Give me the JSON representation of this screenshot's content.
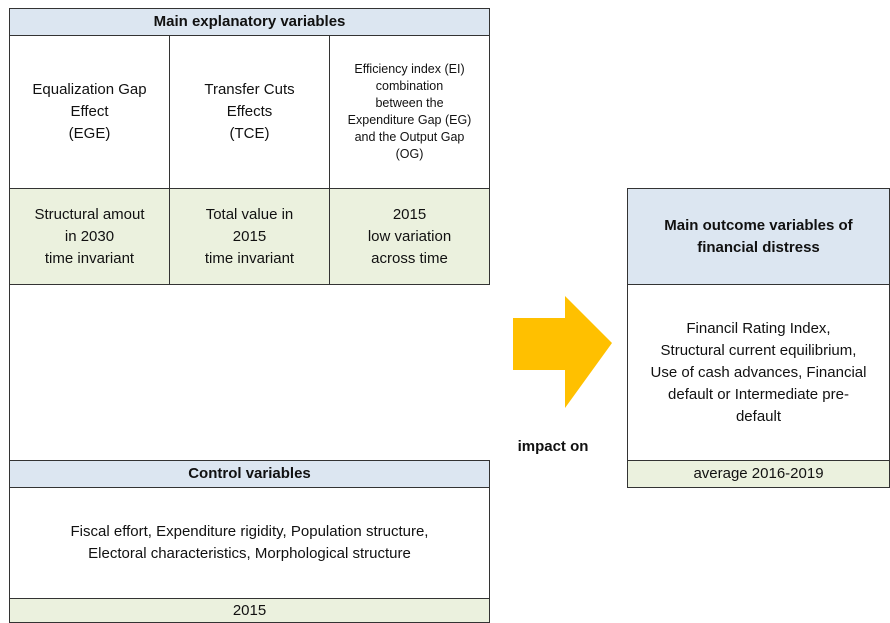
{
  "main_block": {
    "title": "Main explanatory variables",
    "variables": [
      {
        "label": "Equalization Gap\nEffect\n(EGE)",
        "description": "Structural amout\nin 2030\ntime invariant"
      },
      {
        "label": "Transfer Cuts\nEffects\n(TCE)",
        "description": "Total value in\n2015\ntime invariant"
      },
      {
        "label": "Efficiency index (EI)\ncombination\nbetween the\nExpenditure Gap (EG)\nand the Output Gap\n(OG)",
        "description": "2015\nlow variation\nacross time"
      }
    ]
  },
  "control_block": {
    "title": "Control variables",
    "body": "Fiscal effort, Expenditure rigidity, Population structure,\nElectoral characteristics, Morphological structure",
    "footer": "2015"
  },
  "outcome_block": {
    "title": "Main outcome variables of\nfinancial distress",
    "body": "Financil Rating Index,\nStructural current equilibrium,\nUse of cash advances, Financial\ndefault or Intermediate pre-\ndefault",
    "footer": "average 2016-2019"
  },
  "arrow_label": "impact on"
}
